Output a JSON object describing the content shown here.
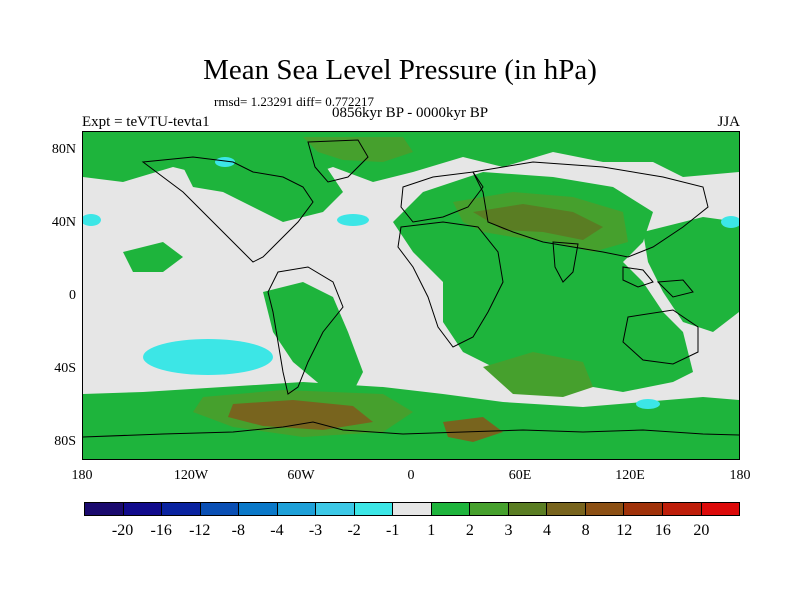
{
  "title": "Mean Sea Level Pressure (in hPa)",
  "stats_text": "rmsd= 1.23291 diff= 0.772217",
  "period": "0856kyr BP - 0000kyr BP",
  "experiment": "Expt = teVTU-tevta1",
  "season": "JJA",
  "lat_ticks": [
    "80N",
    "40N",
    "0",
    "40S",
    "80S"
  ],
  "lon_ticks": [
    "180",
    "120W",
    "60W",
    "0",
    "60E",
    "120E",
    "180"
  ],
  "colorbar": {
    "labels": [
      "-20",
      "-16",
      "-12",
      "-8",
      "-4",
      "-3",
      "-2",
      "-1",
      "1",
      "2",
      "3",
      "4",
      "8",
      "12",
      "16",
      "20"
    ],
    "colors": [
      "#1a0a6e",
      "#110b8c",
      "#0a23a0",
      "#0a4fb4",
      "#0a78c8",
      "#1ea0d8",
      "#3cc8e6",
      "#3ce6e6",
      "#e6e6e6",
      "#1eb43c",
      "#46a02d",
      "#5a7d23",
      "#78641e",
      "#8c5014",
      "#a0320a",
      "#be1e0a",
      "#dc0a0a"
    ]
  },
  "chart_data": {
    "type": "heatmap",
    "title": "Mean Sea Level Pressure (in hPa)",
    "subtitle": "0856kyr BP - 0000kyr BP",
    "units": "hPa",
    "x_range": [
      -180,
      180
    ],
    "y_range": [
      -90,
      90
    ],
    "x_ticks": [
      -180,
      -120,
      -60,
      0,
      60,
      120,
      180
    ],
    "y_ticks": [
      80,
      40,
      0,
      -40,
      -80
    ],
    "levels": [
      -20,
      -16,
      -12,
      -8,
      -4,
      -3,
      -2,
      -1,
      1,
      2,
      3,
      4,
      8,
      12,
      16,
      20
    ],
    "rmsd": 1.23291,
    "diff": 0.772217
  }
}
